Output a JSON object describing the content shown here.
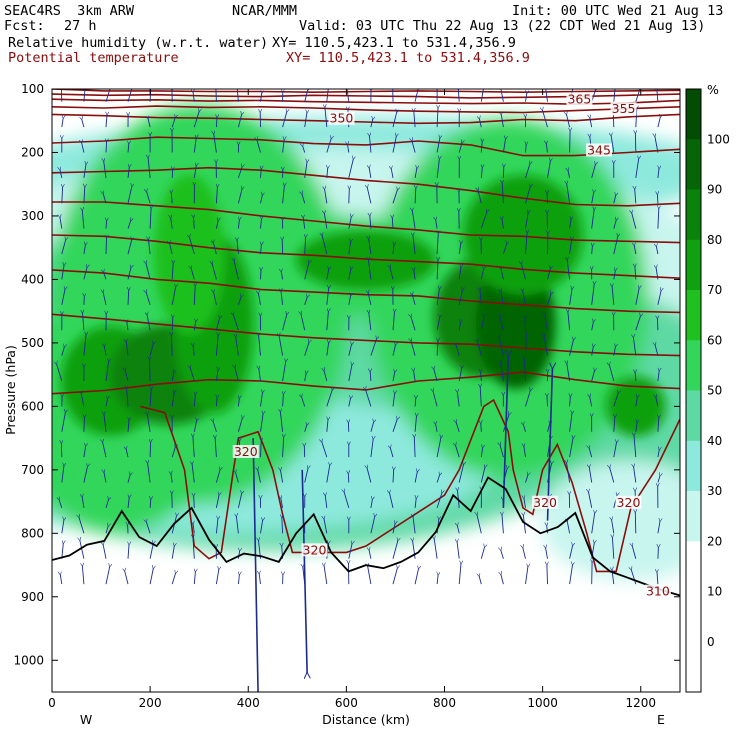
{
  "header": {
    "model": "SEAC4RS  3km ARW",
    "org": "NCAR/MMM",
    "init": "Init: 00 UTC Wed 21 Aug 13",
    "fcst_label": "Fcst:",
    "fcst_value": "27 h",
    "valid": "Valid: 03 UTC Thu 22 Aug 13 (22 CDT Wed 21 Aug 13)",
    "field1": "Relative humidity (w.r.t. water)",
    "field1_xy": "XY= 110.5,423.1 to 531.4,356.9",
    "field2": "Potential temperature",
    "field2_xy": "XY= 110.5,423.1 to 531.4,356.9"
  },
  "chart_data": {
    "type": "cross-section",
    "xlabel": "Distance (km)",
    "ylabel": "Pressure (hPa)",
    "x_ticks": [
      0,
      200,
      400,
      600,
      800,
      1000,
      1200
    ],
    "y_ticks": [
      100,
      200,
      300,
      400,
      500,
      600,
      700,
      800,
      900,
      1000
    ],
    "xlim": [
      0,
      1280
    ],
    "ylim": [
      1050,
      100
    ],
    "x_end_labels": {
      "left": "W",
      "right": "E"
    },
    "colorbar": {
      "unit": "%",
      "labels": [
        100,
        90,
        80,
        70,
        60,
        50,
        40,
        30,
        20,
        10,
        0
      ],
      "colors": [
        "#ffffff",
        "#ffffff",
        "#ffffff",
        "#c8f5ee",
        "#8ee9dd",
        "#5fd9a4",
        "#33d65a",
        "#1fc01f",
        "#10a010",
        "#0b820b",
        "#066506",
        "#034c03"
      ]
    },
    "theta_contour_labels": [
      {
        "value": "365",
        "x": 1075,
        "p": 120
      },
      {
        "value": "355",
        "x": 1165,
        "p": 135
      },
      {
        "value": "350",
        "x": 590,
        "p": 150
      },
      {
        "value": "345",
        "x": 1115,
        "p": 200
      },
      {
        "value": "320",
        "x": 395,
        "p": 675
      },
      {
        "value": "320",
        "x": 535,
        "p": 830
      },
      {
        "value": "320",
        "x": 1005,
        "p": 755
      },
      {
        "value": "320",
        "x": 1175,
        "p": 755
      },
      {
        "value": "310",
        "x": 1235,
        "p": 895
      }
    ],
    "theta_contours": [
      {
        "p": [
          100,
          103,
          103,
          104,
          104,
          105,
          104,
          103,
          104,
          105,
          104,
          103,
          102
        ]
      },
      {
        "p": [
          108,
          110,
          109,
          111,
          112,
          110,
          111,
          112,
          114,
          113,
          112,
          110,
          108
        ]
      },
      {
        "p": [
          116,
          118,
          117,
          119,
          118,
          120,
          121,
          122,
          123,
          122,
          124,
          122,
          118
        ]
      },
      {
        "p": [
          128,
          130,
          127,
          129,
          128,
          130,
          133,
          135,
          136,
          137,
          134,
          131,
          128
        ]
      },
      {
        "p": [
          140,
          142,
          145,
          146,
          148,
          150,
          152,
          154,
          153,
          148,
          150,
          144,
          140
        ]
      },
      {
        "p": [
          185,
          182,
          176,
          178,
          180,
          186,
          188,
          182,
          188,
          205,
          205,
          200,
          195
        ]
      },
      {
        "p": [
          232,
          230,
          228,
          224,
          228,
          236,
          244,
          250,
          260,
          272,
          282,
          284,
          280
        ]
      },
      {
        "p": [
          278,
          278,
          284,
          290,
          300,
          308,
          316,
          322,
          330,
          332,
          338,
          340,
          342
        ]
      },
      {
        "p": [
          330,
          332,
          340,
          350,
          358,
          362,
          368,
          372,
          376,
          384,
          390,
          394,
          398
        ]
      },
      {
        "p": [
          385,
          390,
          400,
          406,
          416,
          420,
          424,
          426,
          434,
          440,
          446,
          450,
          452
        ]
      },
      {
        "p": [
          455,
          462,
          470,
          478,
          486,
          492,
          496,
          500,
          502,
          508,
          514,
          518,
          520
        ]
      },
      {
        "p": [
          580,
          575,
          565,
          558,
          560,
          568,
          574,
          560,
          554,
          546,
          558,
          568,
          572
        ]
      }
    ],
    "terrain_p": [
      842,
      835,
      818,
      812,
      765,
      806,
      820,
      785,
      760,
      810,
      845,
      832,
      836,
      845,
      800,
      770,
      830,
      860,
      850,
      855,
      845,
      830,
      798,
      740,
      765,
      712,
      730,
      782,
      800,
      790,
      768,
      838,
      860,
      870,
      880,
      890,
      898
    ]
  }
}
